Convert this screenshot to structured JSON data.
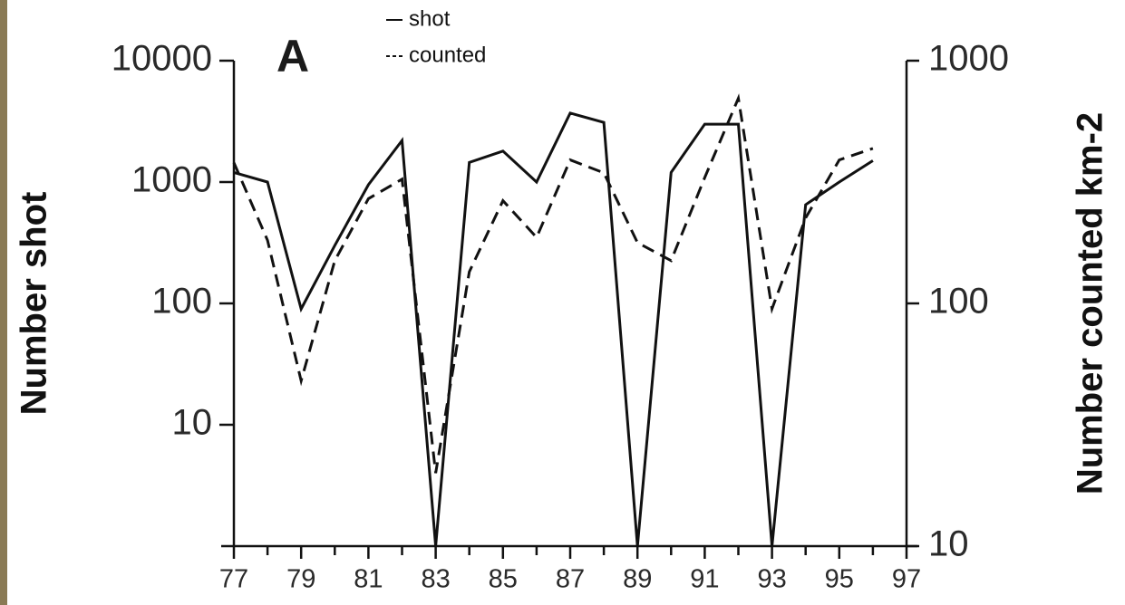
{
  "chart_data": {
    "type": "line",
    "title": "A",
    "y_label": "Number shot",
    "y2_label": "Number counted km-2",
    "x": [
      77,
      78,
      79,
      80,
      81,
      82,
      83,
      84,
      85,
      86,
      87,
      88,
      89,
      90,
      91,
      92,
      93,
      94,
      95,
      96
    ],
    "xlim": [
      77,
      97
    ],
    "xticks": [
      77,
      79,
      81,
      83,
      85,
      87,
      89,
      91,
      93,
      95,
      97
    ],
    "ylim": [
      1,
      10000
    ],
    "yticks": [
      10,
      100,
      1000,
      10000
    ],
    "log_scale": true,
    "y2lim": [
      10,
      1000
    ],
    "y2ticks": [
      10,
      100,
      1000
    ],
    "series": [
      {
        "name": "shot",
        "color": "#111111",
        "linestyle": "solid",
        "axis": "y",
        "values": [
          1200,
          1000,
          90,
          300,
          950,
          2200,
          1,
          1450,
          1800,
          1000,
          3700,
          3100,
          1,
          1200,
          3000,
          3000,
          1,
          650,
          1000,
          1500
        ]
      },
      {
        "name": "counted",
        "color": "#111111",
        "linestyle": "dashed",
        "axis": "y2",
        "values": [
          380,
          182,
          48,
          150,
          270,
          325,
          20,
          135,
          265,
          187,
          390,
          345,
          178,
          150,
          330,
          700,
          95,
          225,
          390,
          435
        ]
      }
    ]
  }
}
